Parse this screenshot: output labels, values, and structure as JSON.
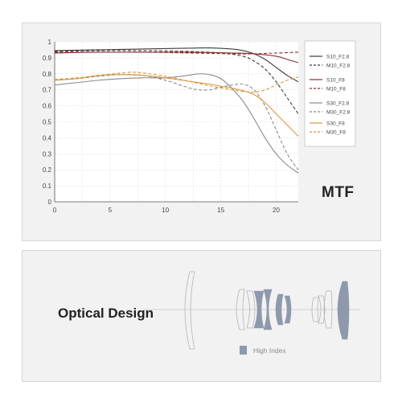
{
  "mtf_label": "MTF",
  "optical_label": "Optical Design",
  "high_index_label": "High Index",
  "colors": {
    "dark_gray": "#3c3c3c",
    "dark_red": "#8a2d2d",
    "mid_gray": "#8a8a8a",
    "orange": "#d9963f",
    "high_index_fill": "#8f99ad"
  },
  "chart_data": {
    "type": "line",
    "title": "MTF",
    "xlabel": "",
    "ylabel": "",
    "xlim": [
      0,
      22
    ],
    "ylim": [
      0,
      1
    ],
    "xticks": [
      0,
      5,
      10,
      15,
      20
    ],
    "yticks": [
      0,
      0.1,
      0.2,
      0.3,
      0.4,
      0.5,
      0.6,
      0.7,
      0.8,
      0.9,
      1
    ],
    "grid": true,
    "legend_placement": "right",
    "series": [
      {
        "name": "S10_F2.8",
        "color": "#3c3c3c",
        "dash": "solid",
        "x": [
          0,
          4,
          8,
          12,
          14,
          16,
          17,
          18,
          19,
          20,
          21,
          22
        ],
        "y": [
          0.945,
          0.95,
          0.955,
          0.96,
          0.962,
          0.955,
          0.945,
          0.925,
          0.89,
          0.84,
          0.79,
          0.75
        ]
      },
      {
        "name": "M10_F2.8",
        "color": "#3c3c3c",
        "dash": "dashed",
        "x": [
          0,
          4,
          8,
          12,
          15,
          17,
          18,
          19,
          20,
          21,
          22
        ],
        "y": [
          0.94,
          0.945,
          0.945,
          0.94,
          0.93,
          0.91,
          0.88,
          0.83,
          0.75,
          0.65,
          0.55
        ]
      },
      {
        "name": "S10_F8",
        "color": "#8a2d2d",
        "dash": "solid",
        "x": [
          0,
          4,
          8,
          12,
          16,
          18,
          20,
          21,
          22
        ],
        "y": [
          0.93,
          0.935,
          0.935,
          0.935,
          0.93,
          0.925,
          0.91,
          0.89,
          0.87
        ]
      },
      {
        "name": "M10_F8",
        "color": "#8a2d2d",
        "dash": "dashed",
        "x": [
          0,
          4,
          8,
          12,
          16,
          18,
          20,
          22
        ],
        "y": [
          0.935,
          0.935,
          0.935,
          0.93,
          0.925,
          0.925,
          0.93,
          0.935
        ]
      },
      {
        "name": "S30_F2.8",
        "color": "#8a8a8a",
        "dash": "solid",
        "x": [
          0,
          2,
          4,
          6,
          8,
          10,
          12,
          13,
          14,
          15,
          16,
          17,
          18,
          19,
          20,
          21,
          22
        ],
        "y": [
          0.73,
          0.745,
          0.76,
          0.77,
          0.775,
          0.775,
          0.79,
          0.8,
          0.795,
          0.77,
          0.71,
          0.63,
          0.52,
          0.4,
          0.3,
          0.23,
          0.18
        ]
      },
      {
        "name": "M30_F2.8",
        "color": "#8a8a8a",
        "dash": "dashed",
        "x": [
          0,
          2,
          4,
          6,
          8,
          10,
          12,
          13,
          14,
          15,
          16,
          17,
          18,
          19,
          20,
          21,
          22
        ],
        "y": [
          0.76,
          0.77,
          0.785,
          0.795,
          0.79,
          0.76,
          0.715,
          0.7,
          0.7,
          0.715,
          0.73,
          0.735,
          0.7,
          0.6,
          0.45,
          0.3,
          0.2
        ]
      },
      {
        "name": "S30_F8",
        "color": "#d9963f",
        "dash": "solid",
        "x": [
          0,
          2,
          4,
          6,
          8,
          10,
          12,
          14,
          16,
          17,
          18,
          19,
          20,
          21,
          22
        ],
        "y": [
          0.76,
          0.77,
          0.79,
          0.795,
          0.79,
          0.775,
          0.755,
          0.735,
          0.71,
          0.695,
          0.67,
          0.62,
          0.55,
          0.48,
          0.41
        ]
      },
      {
        "name": "M30_F8",
        "color": "#d9963f",
        "dash": "dashed",
        "x": [
          0,
          2,
          4,
          6,
          7,
          8,
          10,
          12,
          14,
          16,
          17,
          18,
          19,
          20,
          21,
          22
        ],
        "y": [
          0.765,
          0.775,
          0.79,
          0.805,
          0.81,
          0.805,
          0.785,
          0.755,
          0.725,
          0.7,
          0.69,
          0.685,
          0.7,
          0.73,
          0.76,
          0.78
        ]
      }
    ]
  }
}
